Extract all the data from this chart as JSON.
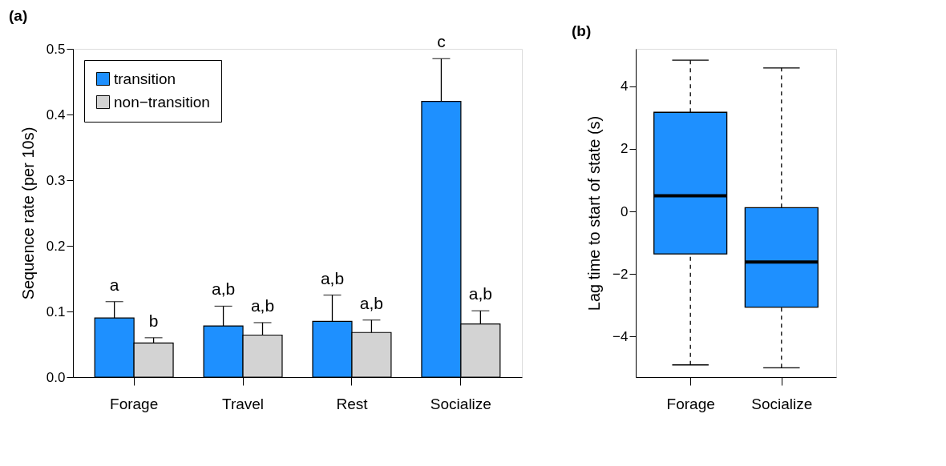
{
  "chart_data": [
    {
      "type": "bar",
      "title": "(a)",
      "ylabel": "Sequence rate (per 10s)",
      "categories": [
        "Forage",
        "Travel",
        "Rest",
        "Socialize"
      ],
      "ylim": [
        0,
        0.5
      ],
      "yticks": [
        {
          "value": 0,
          "label": "0.0"
        },
        0.1,
        0.2,
        0.3,
        0.4,
        0.5
      ],
      "grid": false,
      "legend": "top left",
      "series": [
        {
          "name": "transition",
          "color": "#1e90ff",
          "values": [
            0.09,
            0.078,
            0.085,
            0.42
          ],
          "errors": [
            [
              0.09,
              0.115
            ],
            [
              0.078,
              0.108
            ],
            [
              0.085,
              0.125
            ],
            [
              0.42,
              0.485
            ]
          ],
          "value_labels": [
            "a",
            "a,b",
            "a,b",
            "c"
          ]
        },
        {
          "name": "non−transition",
          "color": "#d3d3d3",
          "values": [
            0.052,
            0.064,
            0.068,
            0.081
          ],
          "errors": [
            [
              0.052,
              0.06
            ],
            [
              0.064,
              0.083
            ],
            [
              0.068,
              0.087
            ],
            [
              0.081,
              0.101
            ]
          ],
          "value_labels": [
            "b",
            "a,b",
            "a,b",
            "a,b"
          ]
        }
      ]
    },
    {
      "type": "box",
      "title": "(b)",
      "ylabel": "Lag time to start of state (s)",
      "categories": [
        "Forage",
        "Socialize"
      ],
      "ylim": [
        -5.3,
        5.2
      ],
      "yticks": [
        {
          "value": -4,
          "label": "−4"
        },
        {
          "value": -2,
          "label": "−2"
        },
        0,
        2,
        4
      ],
      "grid": false,
      "color": "#1e90ff",
      "boxes": [
        {
          "low": -4.91,
          "q1": -1.36,
          "median": 0.5,
          "q3": 3.17,
          "high": 4.84
        },
        {
          "low": -5.0,
          "q1": -3.06,
          "median": -1.62,
          "q3": 0.12,
          "high": 4.59
        }
      ]
    }
  ]
}
